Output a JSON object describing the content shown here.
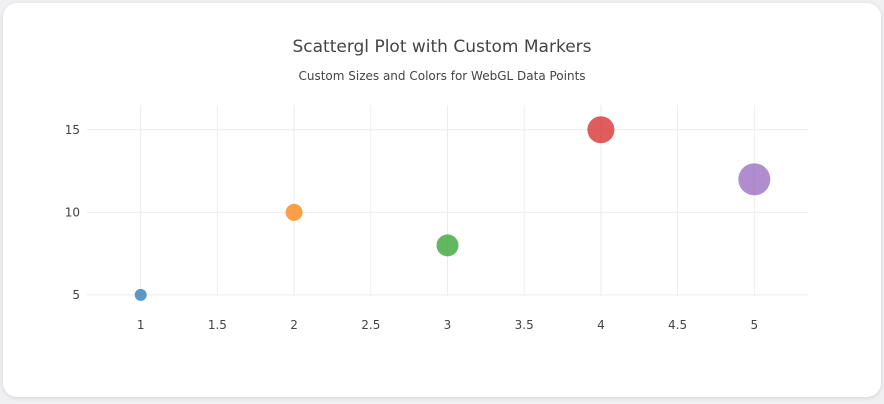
{
  "chart_data": {
    "type": "scatter",
    "title": "Scattergl Plot with Custom Markers",
    "subtitle": "Custom Sizes and Colors for WebGL Data Points",
    "xlabel": "",
    "ylabel": "",
    "xlim": [
      0.65,
      5.35
    ],
    "ylim": [
      3.3,
      16.5
    ],
    "x_ticks": [
      1,
      1.5,
      2,
      2.5,
      3,
      3.5,
      4,
      4.5,
      5
    ],
    "x_tick_labels": [
      "1",
      "1.5",
      "2",
      "2.5",
      "3",
      "3.5",
      "4",
      "4.5",
      "5"
    ],
    "y_ticks": [
      5,
      10,
      15
    ],
    "y_tick_labels": [
      "5",
      "10",
      "15"
    ],
    "grid": true,
    "legend": false,
    "points": [
      {
        "x": 1,
        "y": 5,
        "size": 10,
        "color": "#1f77b4"
      },
      {
        "x": 2,
        "y": 10,
        "size": 15,
        "color": "#ff7f0e"
      },
      {
        "x": 3,
        "y": 8,
        "size": 20,
        "color": "#2ca02c"
      },
      {
        "x": 4,
        "y": 15,
        "size": 25,
        "color": "#d62728"
      },
      {
        "x": 5,
        "y": 12,
        "size": 30,
        "color": "#9467bd"
      }
    ],
    "marker_opacity": 0.75
  }
}
